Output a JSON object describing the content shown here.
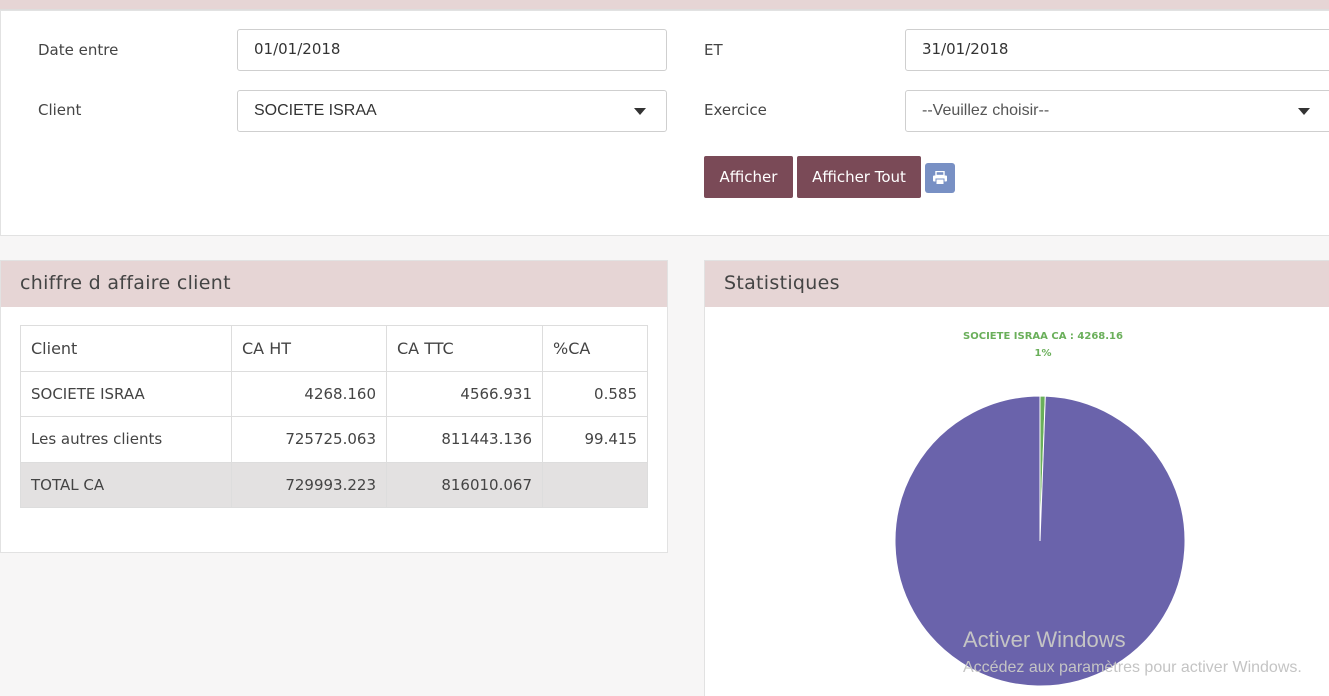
{
  "filters": {
    "date_label": "Date entre",
    "date_from": "01/01/2018",
    "et_label": "ET",
    "date_to": "31/01/2018",
    "client_label": "Client",
    "client_value": "SOCIETE ISRAA",
    "exercice_label": "Exercice",
    "exercice_value": "--Veuillez choisir--"
  },
  "buttons": {
    "afficher": "Afficher",
    "afficher_tout": "Afficher Tout"
  },
  "ca_panel": {
    "title": "chiffre d affaire client",
    "columns": [
      "Client",
      "CA HT",
      "CA TTC",
      "%CA"
    ],
    "rows": [
      {
        "client": "SOCIETE ISRAA",
        "ca_ht": "4268.160",
        "ca_ttc": "4566.931",
        "pct": "0.585"
      },
      {
        "client": "Les autres clients",
        "ca_ht": "725725.063",
        "ca_ttc": "811443.136",
        "pct": "99.415"
      },
      {
        "client": "TOTAL CA",
        "ca_ht": "729993.223",
        "ca_ttc": "816010.067",
        "pct": ""
      }
    ]
  },
  "stats_panel": {
    "title": "Statistiques"
  },
  "chart_data": {
    "type": "pie",
    "slices": [
      {
        "label": "SOCIETE ISRAA CA : 4268.16",
        "pct_label": "1%",
        "value": 4268.16,
        "color": "#6aaf5a"
      },
      {
        "label": "",
        "pct_label": "",
        "value": 725725.063,
        "color": "#6a63ab"
      }
    ]
  },
  "watermark": {
    "line1": "Activer Windows",
    "line2": "Accédez aux paramètres pour activer Windows."
  },
  "colors": {
    "accent": "#7a4a57",
    "panel_header": "#e6d5d5",
    "print_button": "#7890c4"
  },
  "icons": {
    "print": "printer-icon",
    "select_arrow": "caret-down-icon"
  }
}
